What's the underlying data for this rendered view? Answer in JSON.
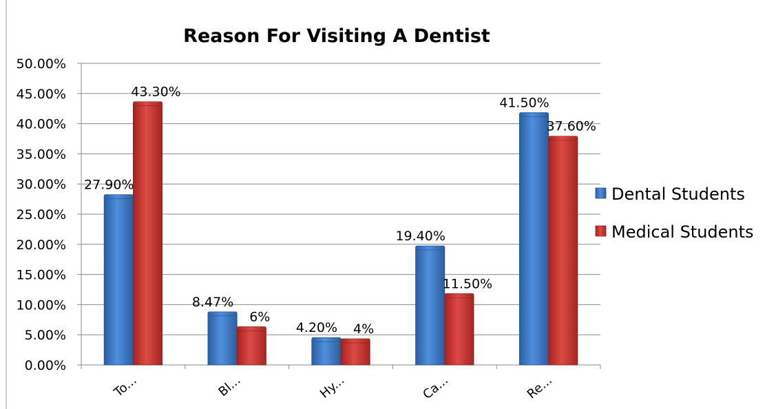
{
  "chart_data": {
    "type": "bar",
    "title": "Reason For Visiting  A Dentist",
    "xlabel": "",
    "ylabel": "",
    "categories": [
      "To...",
      "Bl...",
      "Hy...",
      "Ca...",
      "Re..."
    ],
    "series": [
      {
        "name": "Dental Students",
        "values": [
          27.9,
          8.47,
          4.2,
          19.4,
          41.5
        ],
        "labels": [
          "27.90%",
          "8.47%",
          "4.20%",
          "19.40%",
          "41.50%"
        ],
        "color": "#3d77c6"
      },
      {
        "name": "Medical Students",
        "values": [
          43.3,
          6,
          4,
          11.5,
          37.6
        ],
        "labels": [
          "43.30%",
          "6%",
          "4%",
          "11.50%",
          "37.60%"
        ],
        "color": "#c8302e"
      }
    ],
    "ylim": [
      0,
      50
    ],
    "yticks": [
      "0.00%",
      "5.00%",
      "10.00%",
      "15.00%",
      "20.00%",
      "25.00%",
      "30.00%",
      "35.00%",
      "40.00%",
      "45.00%",
      "50.00%"
    ],
    "grid": true,
    "legend": "right"
  }
}
